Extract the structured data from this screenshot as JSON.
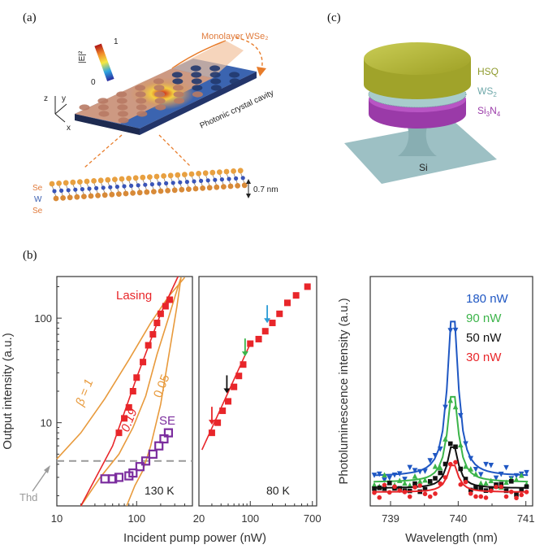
{
  "panel_labels": {
    "a": "(a)",
    "b": "(b)",
    "c": "(c)"
  },
  "panel_a": {
    "material_label": "Monolayer WSe₂",
    "cavity_label": "Photonic crystal cavity",
    "colorbar_label": "|E|²",
    "colorbar_min": "0",
    "colorbar_max": "1",
    "axis_z": "z",
    "axis_y": "y",
    "axis_x": "x",
    "atom_labels": [
      "Se",
      "W",
      "Se"
    ],
    "thickness": "0.7 nm"
  },
  "panel_c": {
    "layers": [
      {
        "name_parts": [
          "HSQ",
          ""
        ],
        "color": "#b5b83a"
      },
      {
        "name_parts": [
          "WS",
          "2"
        ],
        "color": "#8fb8b8"
      },
      {
        "name_parts": [
          "Si",
          "3",
          "N",
          "4"
        ],
        "color": "#a23fb0"
      }
    ],
    "substrate": "Si"
  },
  "chart_data": [
    {
      "type": "scatter",
      "panel": "b-left",
      "temperature": "130 K",
      "xscale": "log",
      "yscale": "log",
      "xlim": [
        10,
        500
      ],
      "ylim": [
        1.6,
        250
      ],
      "xticks": [
        10,
        100
      ],
      "yticks": [
        10,
        100
      ],
      "ylabel": "Output intensity (a.u.)",
      "series_labels": {
        "lasing": "Lasing",
        "se": "SE",
        "beta1": "β = 1",
        "b019": "0.19",
        "b005": "0.05",
        "thd": "Thd"
      },
      "lasing_points": [
        [
          60,
          8
        ],
        [
          70,
          11
        ],
        [
          80,
          14
        ],
        [
          90,
          20
        ],
        [
          100,
          27
        ],
        [
          120,
          38
        ],
        [
          140,
          55
        ],
        [
          160,
          70
        ],
        [
          180,
          90
        ],
        [
          200,
          110
        ],
        [
          230,
          130
        ],
        [
          260,
          150
        ]
      ],
      "se_points": [
        [
          40,
          2.9
        ],
        [
          50,
          2.9
        ],
        [
          60,
          3.0
        ],
        [
          80,
          3.1
        ],
        [
          90,
          3.3
        ],
        [
          110,
          3.8
        ],
        [
          130,
          4.3
        ],
        [
          160,
          5.0
        ],
        [
          190,
          6.0
        ],
        [
          220,
          7.0
        ],
        [
          250,
          8.0
        ]
      ],
      "threshold": 4.3,
      "colors": {
        "lasing": "#e8262a",
        "se": "#7b2d9e",
        "beta": "#e89a3c",
        "thd": "#9a9a9a"
      }
    },
    {
      "type": "scatter",
      "panel": "b-middle",
      "temperature": "80 K",
      "xscale": "log",
      "yscale": "log",
      "xlim": [
        20,
        800
      ],
      "ylim": [
        1.6,
        250
      ],
      "xticks": [
        20,
        100,
        700
      ],
      "xlabel": "Incident pump power (nW)",
      "points": [
        [
          30,
          8
        ],
        [
          36,
          10
        ],
        [
          42,
          13
        ],
        [
          50,
          16
        ],
        [
          60,
          22
        ],
        [
          70,
          28
        ],
        [
          80,
          36
        ],
        [
          100,
          57
        ],
        [
          130,
          63
        ],
        [
          160,
          75
        ],
        [
          200,
          90
        ],
        [
          250,
          110
        ],
        [
          320,
          140
        ],
        [
          420,
          165
        ],
        [
          600,
          200
        ]
      ],
      "arrows": [
        {
          "x": 30,
          "color": "#e8262a"
        },
        {
          "x": 48,
          "color": "#111111"
        },
        {
          "x": 85,
          "color": "#3cb44a"
        },
        {
          "x": 170,
          "color": "#2b9bd6"
        }
      ],
      "color": "#e8262a"
    },
    {
      "type": "scatter",
      "panel": "b-right",
      "xlim": [
        738.7,
        741.1
      ],
      "xticks": [
        739,
        740,
        741
      ],
      "xlabel": "Wavelength (nm)",
      "ylabel": "Photoluminescence intensity (a.u.)",
      "series": [
        {
          "name": "180 nW",
          "color": "#1f57c3",
          "marker": "triangle-down",
          "peak": 1.0
        },
        {
          "name": "90 nW",
          "color": "#3cb44a",
          "marker": "triangle-up",
          "peak": 0.58
        },
        {
          "name": "50 nW",
          "color": "#111111",
          "marker": "square",
          "peak": 0.3
        },
        {
          "name": "30 nW",
          "color": "#e8262a",
          "marker": "circle",
          "peak": 0.2
        }
      ]
    }
  ]
}
